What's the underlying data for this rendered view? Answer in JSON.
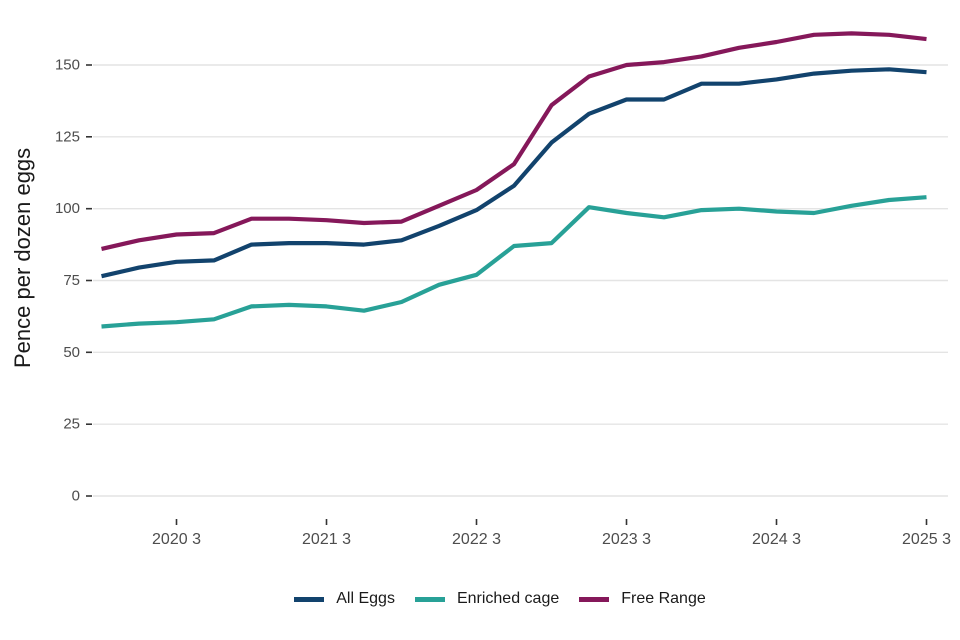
{
  "page": {
    "background": "#ffffff"
  },
  "chart_data": {
    "type": "line",
    "title": "",
    "xlabel": "",
    "ylabel": "Pence per dozen eggs",
    "ylim": [
      0,
      168
    ],
    "grid": "horizontal",
    "legend_position": "bottom",
    "x": [
      "2020 Q1",
      "2020 Q2",
      "2020 Q3",
      "2020 Q4",
      "2021 Q1",
      "2021 Q2",
      "2021 Q3",
      "2021 Q4",
      "2022 Q1",
      "2022 Q2",
      "2022 Q3",
      "2022 Q4",
      "2023 Q1",
      "2023 Q2",
      "2023 Q3",
      "2023 Q4",
      "2024 Q1",
      "2024 Q2",
      "2024 Q3",
      "2024 Q4",
      "2025 Q1",
      "2025 Q2",
      "2025 Q3"
    ],
    "y_ticks": [
      {
        "value": 0,
        "label": "0"
      },
      {
        "value": 25,
        "label": "25"
      },
      {
        "value": 50,
        "label": "50"
      },
      {
        "value": 75,
        "label": "75"
      },
      {
        "value": 100,
        "label": "100"
      },
      {
        "value": 125,
        "label": "125"
      },
      {
        "value": 150,
        "label": "150"
      }
    ],
    "x_ticks": [
      {
        "index": 2,
        "label": "2020 3"
      },
      {
        "index": 6,
        "label": "2021 3"
      },
      {
        "index": 10,
        "label": "2022 3"
      },
      {
        "index": 14,
        "label": "2023 3"
      },
      {
        "index": 18,
        "label": "2024 3"
      },
      {
        "index": 22,
        "label": "2025 3"
      }
    ],
    "series": [
      {
        "name": "All Eggs",
        "color": "#12436D",
        "values": [
          76.5,
          79.5,
          81.5,
          82,
          87.5,
          88,
          88,
          87.5,
          89,
          94,
          99.5,
          108,
          123,
          133,
          138,
          138,
          143.5,
          143.5,
          145,
          147,
          148,
          148.5,
          147.5
        ]
      },
      {
        "name": "Enriched cage",
        "color": "#28A197",
        "values": [
          59,
          60,
          60.5,
          61.5,
          66,
          66.5,
          66,
          64.5,
          67.5,
          73.5,
          77,
          87,
          88,
          100.5,
          98.5,
          97,
          99.5,
          100,
          99,
          98.5,
          101,
          103,
          104
        ]
      },
      {
        "name": "Free Range",
        "color": "#85185A",
        "values": [
          86,
          89,
          91,
          91.5,
          96.5,
          96.5,
          96,
          95,
          95.5,
          101,
          106.5,
          115.5,
          136,
          146,
          150,
          151,
          153,
          156,
          158,
          160.5,
          161,
          160.5,
          159
        ]
      }
    ],
    "colors": {
      "gridline": "#e4e4e4",
      "tick_mark": "#333333",
      "tick_text": "#4d4d4d",
      "axis_title_text": "#1a1a1a"
    }
  }
}
